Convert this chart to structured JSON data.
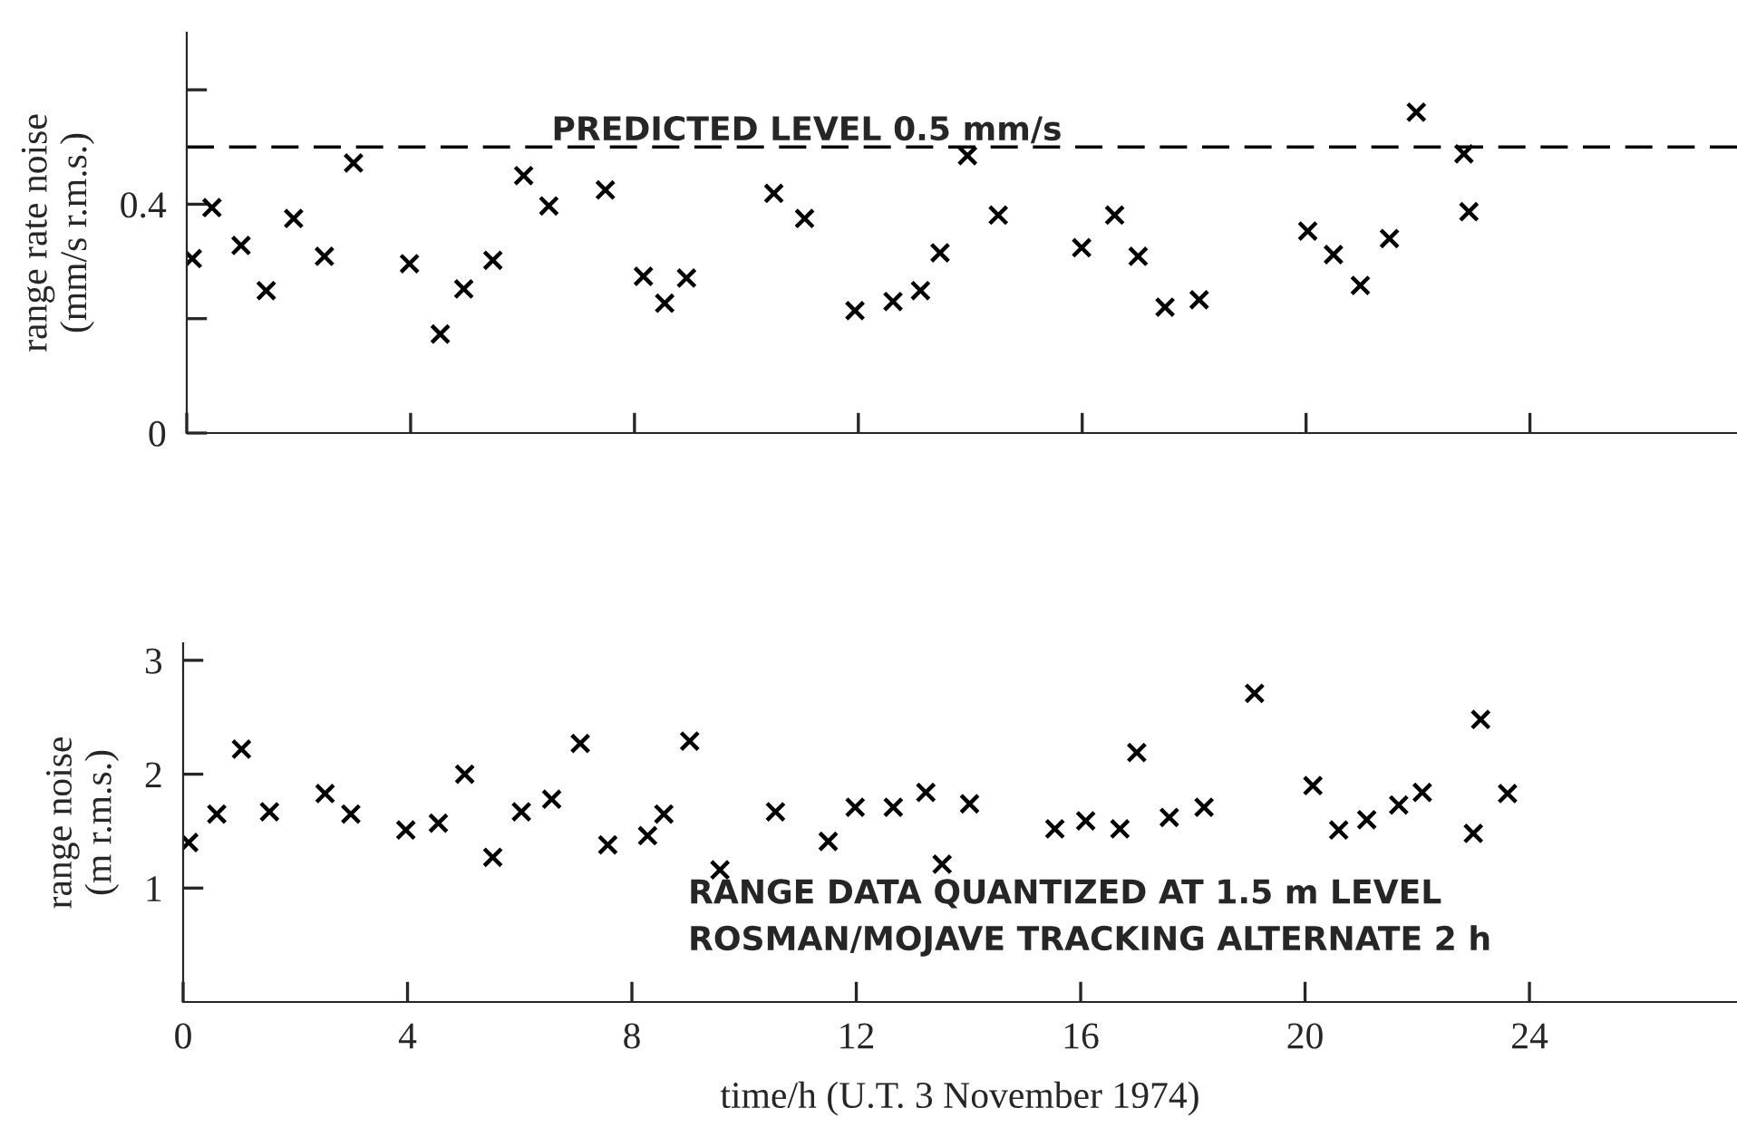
{
  "chart_data": [
    {
      "type": "scatter",
      "ylabel": "range rate noise\n(mm/s r.m.s.)",
      "marker": "cross",
      "grid": false,
      "legend": false,
      "tick_labels": "y",
      "xlim": [
        0,
        27.7
      ],
      "xticks": [
        {
          "value": 0,
          "label": null
        },
        {
          "value": 4,
          "label": null
        },
        {
          "value": 8,
          "label": null
        },
        {
          "value": 12,
          "label": null
        },
        {
          "value": 16,
          "label": null
        },
        {
          "value": 20,
          "label": null
        },
        {
          "value": 24,
          "label": null
        }
      ],
      "ylim": [
        0,
        0.7
      ],
      "yticks": [
        0,
        {
          "value": 0.2,
          "label": null
        },
        0.4,
        {
          "value": 0.6,
          "label": null
        }
      ],
      "ref_lines": [
        {
          "axis": "y",
          "value": 0.5,
          "label": "PREDICTED LEVEL 0.5 mm/s",
          "line_style": "dashed",
          "color": "#000000"
        }
      ],
      "series": [
        {
          "color": "#000000",
          "x": [
            0.1,
            0.45,
            0.97,
            1.42,
            1.91,
            2.46,
            2.98,
            3.98,
            4.53,
            4.95,
            5.47,
            6.02,
            6.47,
            7.48,
            8.16,
            8.54,
            8.93,
            10.49,
            11.04,
            11.94,
            12.62,
            13.11,
            13.46,
            13.95,
            14.5,
            15.99,
            16.58,
            17.0,
            17.48,
            18.09,
            20.03,
            20.49,
            20.97,
            21.49,
            21.97,
            22.82,
            22.91
          ],
          "values": [
            0.305,
            0.394,
            0.328,
            0.249,
            0.375,
            0.309,
            0.472,
            0.296,
            0.173,
            0.252,
            0.302,
            0.45,
            0.397,
            0.425,
            0.274,
            0.227,
            0.271,
            0.419,
            0.375,
            0.214,
            0.23,
            0.249,
            0.315,
            0.485,
            0.381,
            0.324,
            0.381,
            0.309,
            0.22,
            0.233,
            0.353,
            0.312,
            0.258,
            0.34,
            0.561,
            0.488,
            0.387
          ]
        }
      ]
    },
    {
      "type": "scatter",
      "ylabel": "range noise\n(m r.m.s.)",
      "xlabel": "time/h (U.T. 3 November 1974)",
      "marker": "cross",
      "grid": false,
      "legend": false,
      "xlim": [
        0,
        27.7
      ],
      "xticks": [
        0,
        4,
        8,
        12,
        16,
        20,
        24
      ],
      "ylim": [
        0,
        3.15
      ],
      "yticks": [
        1,
        2,
        3
      ],
      "annotations": [
        "RANGE DATA QUANTIZED AT 1.5 m LEVEL",
        "ROSMAN/MOJAVE TRACKING ALTERNATE 2 h"
      ],
      "series": [
        {
          "color": "#000000",
          "x": [
            0.1,
            0.6,
            1.04,
            1.54,
            2.53,
            2.99,
            3.97,
            4.55,
            5.02,
            5.52,
            6.03,
            6.57,
            7.08,
            7.57,
            8.28,
            8.57,
            9.03,
            9.57,
            10.56,
            11.5,
            11.98,
            12.66,
            13.24,
            13.53,
            14.02,
            15.54,
            16.09,
            16.7,
            17.0,
            17.58,
            18.2,
            19.1,
            20.14,
            20.6,
            21.1,
            21.67,
            22.09,
            23.0,
            23.13,
            23.61
          ],
          "values": [
            1.4,
            1.65,
            2.22,
            1.67,
            1.83,
            1.65,
            1.51,
            1.57,
            2.0,
            1.27,
            1.67,
            1.78,
            2.27,
            1.38,
            1.46,
            1.65,
            2.29,
            1.16,
            1.67,
            1.41,
            1.71,
            1.71,
            1.84,
            1.21,
            1.74,
            1.52,
            1.59,
            1.52,
            2.19,
            1.62,
            1.71,
            2.71,
            1.9,
            1.51,
            1.6,
            1.73,
            1.84,
            1.48,
            2.48,
            1.83
          ]
        }
      ]
    }
  ]
}
